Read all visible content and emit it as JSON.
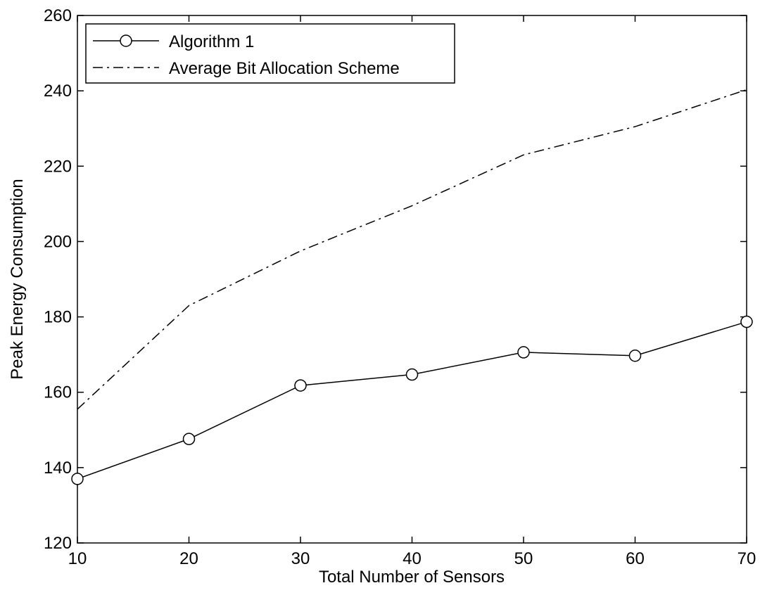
{
  "chart_data": {
    "type": "line",
    "title": "",
    "xlabel": "Total Number of Sensors",
    "ylabel": "Peak Energy Consumption",
    "xlim": [
      10,
      70
    ],
    "ylim": [
      120,
      260
    ],
    "x_ticks": [
      10,
      20,
      30,
      40,
      50,
      60,
      70
    ],
    "y_ticks": [
      120,
      140,
      160,
      180,
      200,
      220,
      240,
      260
    ],
    "x": [
      10,
      20,
      30,
      40,
      50,
      60,
      70
    ],
    "series": [
      {
        "name": "Algorithm 1",
        "values": [
          137,
          147.6,
          161.8,
          164.7,
          170.6,
          169.7,
          178.7
        ],
        "line_style": "solid",
        "marker": "circle",
        "color": "#000000"
      },
      {
        "name": "Average Bit Allocation Scheme",
        "values": [
          155.5,
          183,
          197.5,
          209.5,
          223,
          230.5,
          240.3
        ],
        "line_style": "dash-dot",
        "marker": "none",
        "color": "#000000"
      }
    ],
    "grid": false,
    "legend_position": "top-left"
  }
}
